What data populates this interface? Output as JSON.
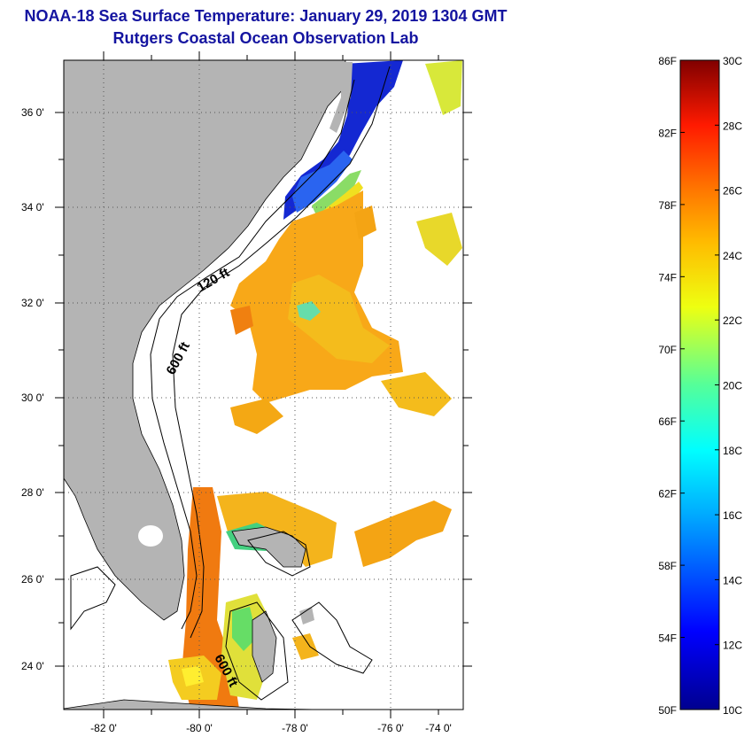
{
  "title_line1": "NOAA-18 Sea Surface Temperature:  January 29, 2019 1304 GMT",
  "title_line2": "Rutgers Coastal Ocean Observation Lab",
  "map": {
    "lon_labels": [
      "-82 0'",
      "-80 0'",
      "-78 0'",
      "-76 0'",
      "-74 0'"
    ],
    "lat_labels": [
      "36 0'",
      "34 0'",
      "32 0'",
      "30 0'",
      "28 0'",
      "26 0'",
      "24 0'"
    ],
    "contour_labels": [
      "120 ft",
      "600 ft",
      "600 ft"
    ],
    "land_color": "#b4b4b4"
  },
  "colorbar": {
    "f_labels": [
      "86F",
      "82F",
      "78F",
      "74F",
      "70F",
      "66F",
      "62F",
      "58F",
      "54F",
      "50F"
    ],
    "c_labels": [
      "30C",
      "28C",
      "26C",
      "24C",
      "22C",
      "20C",
      "18C",
      "16C",
      "14C",
      "12C",
      "10C"
    ],
    "min_c": 10,
    "max_c": 30
  }
}
